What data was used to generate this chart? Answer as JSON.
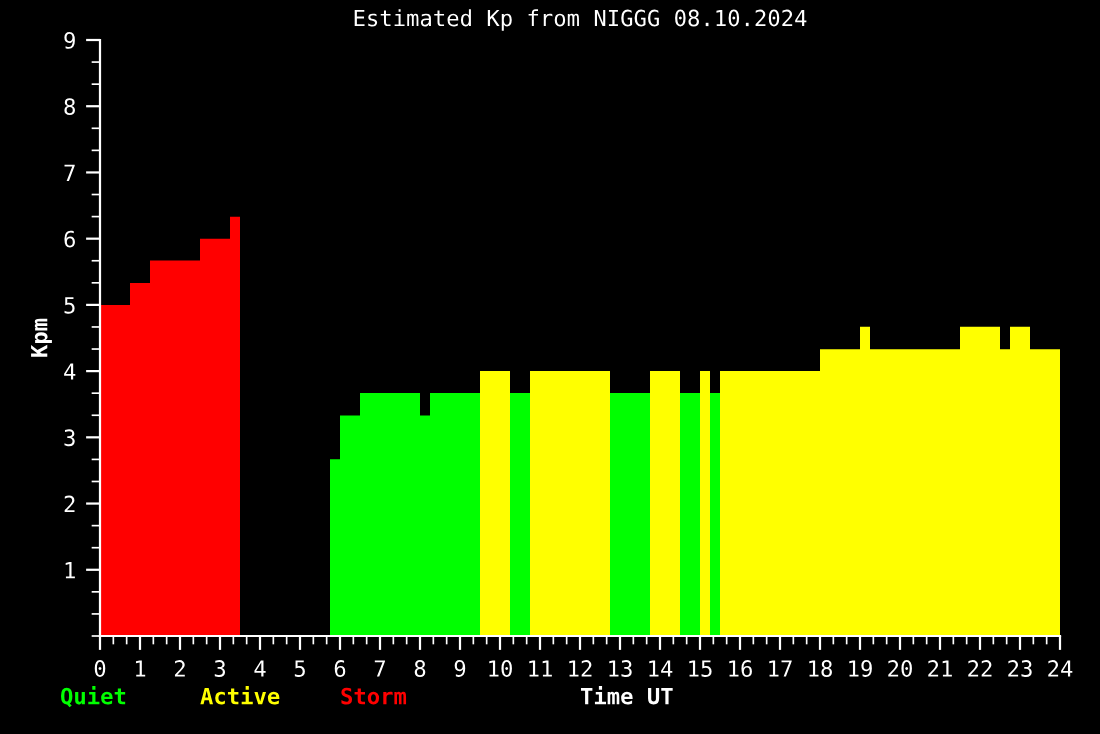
{
  "chart_data": {
    "type": "area",
    "title": "Estimated Kp from NIGGG 08.10.2024",
    "xlabel": "Time UT",
    "ylabel": "Kpm",
    "series": [
      {
        "name": "Quiet",
        "color": "#00ff00",
        "x": [
          5.75,
          6,
          6,
          6.5,
          6.5,
          8,
          8,
          8.25,
          8.25,
          9.5,
          9.5,
          10.25,
          10.25,
          10.75,
          10.75,
          12.75,
          12.75,
          13.75,
          13.75,
          14.5,
          14.5,
          15,
          15,
          15.25,
          15.25,
          15.5
        ],
        "values": [
          2.67,
          2.67,
          3.33,
          3.33,
          3.67,
          3.67,
          3.33,
          3.33,
          3.67,
          3.67,
          0,
          0,
          3.67,
          3.67,
          0,
          0,
          3.67,
          3.67,
          0,
          0,
          3.67,
          3.67,
          0,
          0,
          3.67,
          3.67
        ]
      },
      {
        "name": "Active",
        "color": "#ffff00",
        "x": [
          9.5,
          10.25,
          10.25,
          10.75,
          10.75,
          12.75,
          12.75,
          13.75,
          13.75,
          14.5,
          14.5,
          15,
          15,
          15.25,
          15.25,
          15.5,
          15.5,
          18,
          18,
          19,
          19,
          19.25,
          19.25,
          21.5,
          21.5,
          22.5,
          22.5,
          22.75,
          22.75,
          23.25,
          23.25,
          24
        ],
        "values": [
          4,
          4,
          0,
          0,
          4,
          4,
          0,
          0,
          4,
          4,
          0,
          0,
          4,
          4,
          0,
          0,
          4,
          4,
          4.33,
          4.33,
          4.67,
          4.67,
          4.33,
          4.33,
          4.67,
          4.67,
          4.33,
          4.33,
          4.67,
          4.67,
          4.33,
          4.33
        ]
      },
      {
        "name": "Storm",
        "color": "#ff0000",
        "x": [
          0,
          0.75,
          0.75,
          1.25,
          1.25,
          2.5,
          2.5,
          3.25,
          3.25,
          3.5
        ],
        "values": [
          5,
          5,
          5.33,
          5.33,
          5.67,
          5.67,
          6,
          6,
          6.33,
          6.33
        ]
      }
    ],
    "xlim": [
      0,
      24
    ],
    "xticks": [
      0,
      1,
      2,
      3,
      4,
      5,
      6,
      7,
      8,
      9,
      10,
      11,
      12,
      13,
      14,
      15,
      16,
      17,
      18,
      19,
      20,
      21,
      22,
      23,
      24
    ],
    "ylim": [
      0,
      9
    ],
    "yticks": [
      1,
      2,
      3,
      4,
      5,
      6,
      7,
      8,
      9
    ],
    "legend": "bottom left",
    "grid": false
  }
}
